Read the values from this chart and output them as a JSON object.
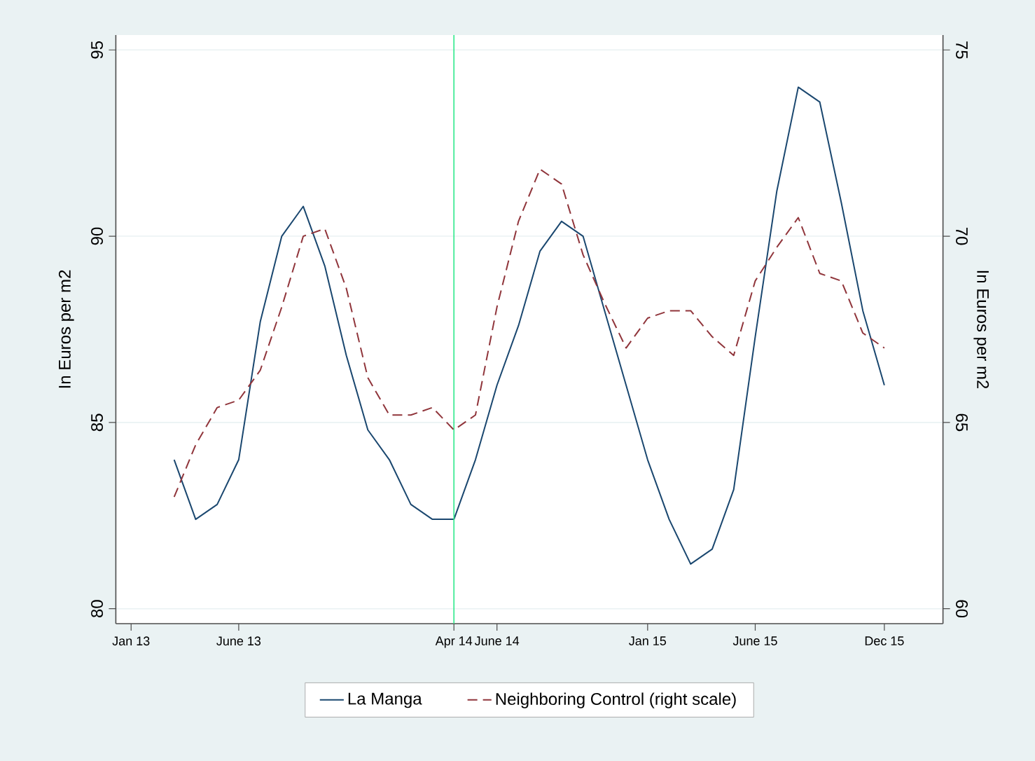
{
  "chart_data": {
    "type": "line",
    "x": [
      "2013-03",
      "2013-04",
      "2013-05",
      "2013-06",
      "2013-07",
      "2013-08",
      "2013-09",
      "2013-10",
      "2013-11",
      "2013-12",
      "2014-01",
      "2014-02",
      "2014-03",
      "2014-04",
      "2014-05",
      "2014-06",
      "2014-07",
      "2014-08",
      "2014-09",
      "2014-10",
      "2014-11",
      "2014-12",
      "2015-01",
      "2015-02",
      "2015-03",
      "2015-04",
      "2015-05",
      "2015-06",
      "2015-07",
      "2015-08",
      "2015-09",
      "2015-10",
      "2015-11",
      "2015-12"
    ],
    "xlim": [
      "2012-12-10",
      "2016-02-22"
    ],
    "xticks": [
      {
        "value": "2013-01",
        "label": "Jan 13"
      },
      {
        "value": "2013-06",
        "label": "June 13"
      },
      {
        "value": "2014-04",
        "label": "Apr 14"
      },
      {
        "value": "2014-06",
        "label": "June 14"
      },
      {
        "value": "2015-01",
        "label": "Jan 15"
      },
      {
        "value": "2015-06",
        "label": "June 15"
      },
      {
        "value": "2015-12",
        "label": "Dec 15"
      }
    ],
    "ylim": [
      79.6,
      95.4
    ],
    "yticks": [
      80,
      85,
      90,
      95
    ],
    "y2lim": [
      59.6,
      75.4
    ],
    "y2ticks": [
      60,
      65,
      70,
      75
    ],
    "ylabel": "In Euros per m2",
    "y2label": "In Euros per m2",
    "series": [
      {
        "name": "La Manga",
        "color": "#1a476f",
        "line_style": "solid",
        "values": [
          84.0,
          82.4,
          82.8,
          84.0,
          87.7,
          90.0,
          90.8,
          89.2,
          86.8,
          84.8,
          84.0,
          82.8,
          82.4,
          82.4,
          84.0,
          86.0,
          87.6,
          89.6,
          90.4,
          90.0,
          88.0,
          86.0,
          84.0,
          82.4,
          81.2,
          81.6,
          83.2,
          87.3,
          91.2,
          94.0,
          93.6,
          90.9,
          88.0,
          86.0
        ]
      },
      {
        "name": "Neighboring Control (right scale)",
        "color": "#90353b",
        "line_style": "dashed",
        "axis": "y2",
        "values": [
          63.0,
          64.4,
          65.4,
          65.6,
          66.4,
          68.1,
          70.0,
          70.2,
          68.6,
          66.2,
          65.2,
          65.2,
          65.4,
          64.8,
          65.2,
          68.1,
          70.4,
          71.8,
          71.4,
          69.5,
          68.2,
          67.0,
          67.8,
          68.0,
          68.0,
          67.3,
          66.8,
          68.8,
          69.7,
          70.5,
          69.0,
          68.8,
          67.4,
          67.0
        ]
      }
    ],
    "ref_lines": [
      {
        "axis": "x",
        "value": "2014-04",
        "color": "#2ee88a"
      }
    ],
    "grid": "y",
    "legend": "bottom"
  }
}
